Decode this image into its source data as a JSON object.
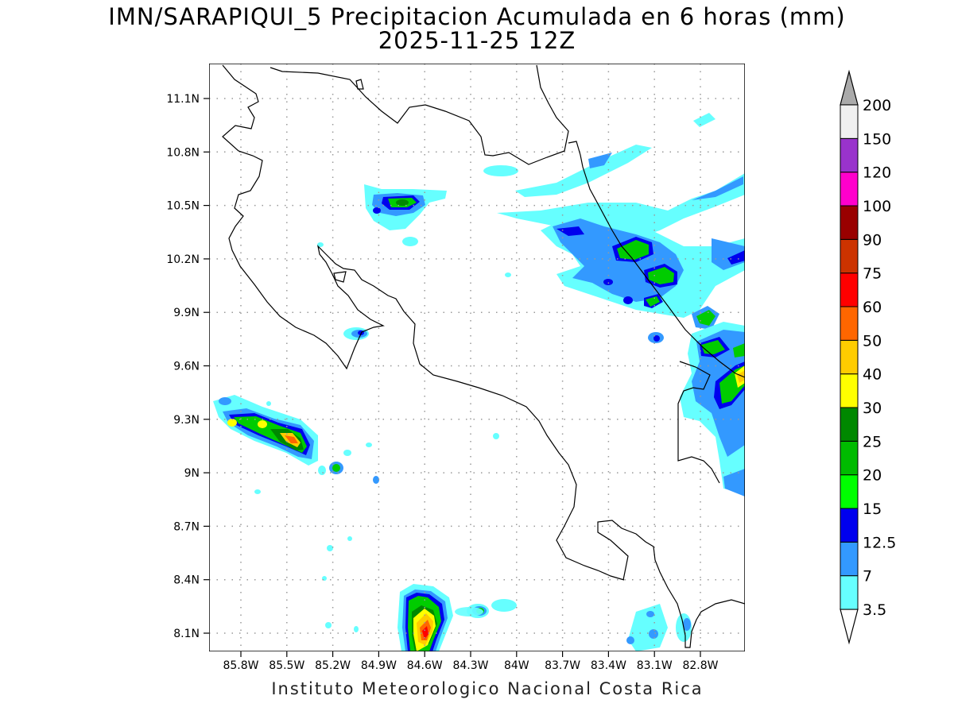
{
  "title": {
    "line1": "IMN/SARAPIQUI_5 Precipitacion Acumulada en 6 horas (mm)",
    "line2": "2025-11-25 12Z"
  },
  "footer": "Instituto Meteorologico Nacional Costa Rica",
  "axes": {
    "lat_ticks": [
      "11.1N",
      "10.8N",
      "10.5N",
      "10.2N",
      "9.9N",
      "9.6N",
      "9.3N",
      "9N",
      "8.7N",
      "8.4N",
      "8.1N"
    ],
    "lon_ticks": [
      "85.8W",
      "85.5W",
      "85.2W",
      "84.9W",
      "84.6W",
      "84.3W",
      "84W",
      "83.7W",
      "83.4W",
      "83.1W",
      "82.8W"
    ]
  },
  "colorbar": {
    "labels": [
      "3.5",
      "7",
      "12.5",
      "15",
      "20",
      "25",
      "30",
      "40",
      "50",
      "60",
      "75",
      "90",
      "100",
      "120",
      "150",
      "200"
    ],
    "colors": [
      "#66ffff",
      "#3399ff",
      "#0000ee",
      "#00ff00",
      "#00bb00",
      "#008800",
      "#ffff00",
      "#ffcc00",
      "#ff6600",
      "#ff0000",
      "#cc3300",
      "#990000",
      "#ff00cc",
      "#9933cc",
      "#f0f0f0"
    ],
    "over_color": "#aaaaaa",
    "under_color": "#ffffff"
  }
}
